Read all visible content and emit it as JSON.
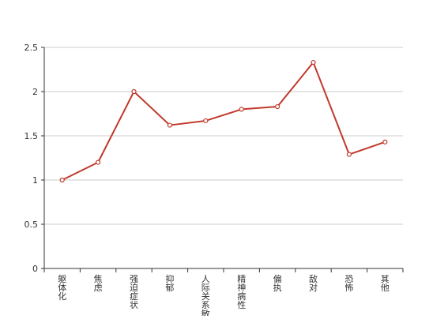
{
  "chart_data": {
    "type": "line",
    "categories": [
      "躯体化",
      "焦虑",
      "强迫症状",
      "抑郁",
      "人际关系敏感",
      "精神病性",
      "偏执",
      "敌对",
      "恐怖",
      "其他"
    ],
    "series": [
      {
        "values": [
          1.0,
          1.2,
          2.0,
          1.62,
          1.67,
          1.8,
          1.83,
          2.33,
          1.29,
          1.43
        ]
      }
    ],
    "ylim": [
      0,
      2.5
    ],
    "y_ticks": [
      "0",
      "0.5",
      "1",
      "1.5",
      "2",
      "2.5"
    ],
    "grid": true,
    "line_color": "#c0392b",
    "point_fill": "#ffffff"
  }
}
